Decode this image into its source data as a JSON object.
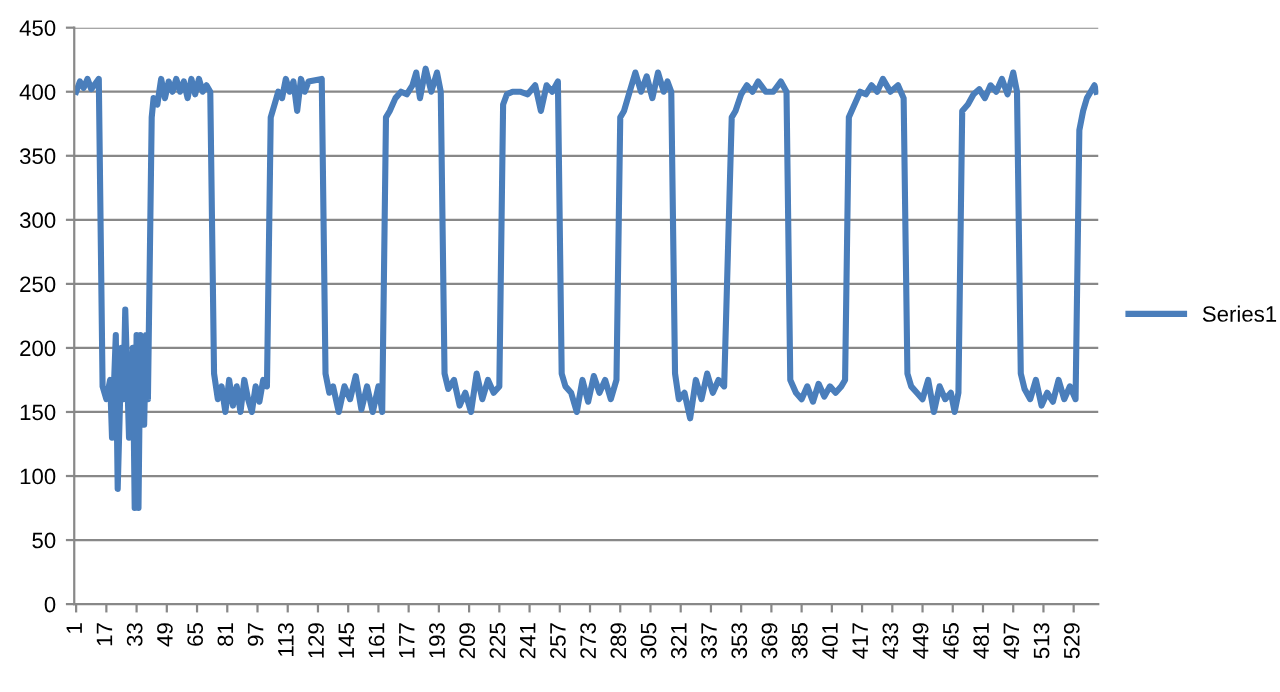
{
  "chart_data": {
    "type": "line",
    "ylim": [
      0,
      450
    ],
    "yticks": [
      0,
      50,
      100,
      150,
      200,
      250,
      300,
      350,
      400,
      450
    ],
    "xlim": [
      0,
      542
    ],
    "xticks": [
      1,
      17,
      33,
      49,
      65,
      81,
      97,
      113,
      129,
      145,
      161,
      177,
      193,
      209,
      225,
      241,
      257,
      273,
      289,
      305,
      321,
      337,
      353,
      369,
      385,
      401,
      417,
      433,
      449,
      465,
      481,
      497,
      513,
      529
    ],
    "grid": "y",
    "legend": "right",
    "marker": "none",
    "line_style": "solid",
    "series": [
      {
        "name": "Series1",
        "color": "#4a7ebb",
        "x": [
          1,
          3,
          5,
          7,
          9,
          11,
          13,
          15,
          17,
          19,
          20,
          22,
          23,
          25,
          26,
          27,
          29,
          31,
          32,
          33,
          34,
          35,
          37,
          38,
          39,
          41,
          42,
          44,
          46,
          48,
          50,
          52,
          54,
          56,
          58,
          60,
          62,
          64,
          66,
          68,
          70,
          72,
          74,
          76,
          78,
          80,
          82,
          84,
          86,
          88,
          90,
          92,
          94,
          96,
          98,
          100,
          102,
          104,
          106,
          108,
          110,
          112,
          114,
          116,
          118,
          120,
          122,
          124,
          131,
          133,
          135,
          137,
          140,
          143,
          146,
          149,
          152,
          155,
          158,
          161,
          163,
          165,
          167,
          170,
          173,
          176,
          179,
          181,
          183,
          186,
          189,
          192,
          194,
          196,
          198,
          201,
          204,
          207,
          210,
          213,
          216,
          219,
          222,
          225,
          227,
          229,
          232,
          236,
          240,
          244,
          247,
          250,
          253,
          256,
          258,
          260,
          263,
          266,
          269,
          272,
          275,
          278,
          281,
          284,
          287,
          289,
          291,
          294,
          297,
          300,
          303,
          306,
          309,
          312,
          314,
          316,
          318,
          320,
          323,
          326,
          329,
          332,
          335,
          338,
          341,
          344,
          348,
          350,
          353,
          356,
          359,
          362,
          366,
          370,
          374,
          377,
          379,
          382,
          385,
          388,
          391,
          394,
          397,
          400,
          403,
          406,
          408,
          410,
          413,
          416,
          419,
          422,
          425,
          428,
          432,
          436,
          439,
          441,
          443,
          446,
          449,
          452,
          455,
          458,
          461,
          464,
          466,
          468,
          470,
          473,
          476,
          479,
          482,
          485,
          488,
          491,
          494,
          497,
          499,
          501,
          503,
          506,
          509,
          512,
          515,
          518,
          521,
          524,
          527,
          530,
          532,
          534,
          536,
          538,
          540,
          541
        ],
        "values": [
          400,
          408,
          403,
          410,
          402,
          406,
          410,
          170,
          160,
          175,
          130,
          210,
          90,
          200,
          160,
          230,
          130,
          200,
          75,
          210,
          75,
          210,
          140,
          210,
          160,
          380,
          395,
          390,
          410,
          395,
          408,
          400,
          410,
          400,
          408,
          395,
          410,
          398,
          410,
          400,
          405,
          400,
          180,
          160,
          170,
          150,
          175,
          155,
          170,
          150,
          175,
          160,
          150,
          170,
          158,
          175,
          170,
          380,
          390,
          400,
          395,
          410,
          400,
          408,
          385,
          410,
          400,
          408,
          410,
          180,
          165,
          170,
          150,
          170,
          160,
          178,
          152,
          170,
          150,
          170,
          150,
          380,
          385,
          395,
          400,
          398,
          405,
          415,
          395,
          418,
          400,
          415,
          400,
          180,
          168,
          175,
          155,
          165,
          150,
          180,
          160,
          175,
          165,
          170,
          390,
          398,
          400,
          400,
          398,
          405,
          385,
          405,
          400,
          408,
          180,
          170,
          165,
          150,
          175,
          158,
          178,
          165,
          175,
          160,
          175,
          380,
          385,
          400,
          415,
          400,
          412,
          395,
          415,
          400,
          408,
          400,
          180,
          160,
          165,
          145,
          175,
          160,
          180,
          165,
          175,
          170,
          380,
          385,
          398,
          405,
          400,
          408,
          400,
          400,
          408,
          400,
          175,
          165,
          160,
          170,
          158,
          172,
          162,
          170,
          165,
          170,
          175,
          380,
          390,
          400,
          398,
          405,
          400,
          410,
          400,
          405,
          395,
          180,
          170,
          165,
          160,
          175,
          150,
          170,
          160,
          165,
          150,
          165,
          385,
          390,
          398,
          402,
          395,
          405,
          400,
          410,
          398,
          415,
          400,
          180,
          168,
          160,
          175,
          155,
          165,
          158,
          175,
          160,
          170,
          160,
          370,
          385,
          395,
          400,
          405,
          400
        ]
      }
    ]
  }
}
